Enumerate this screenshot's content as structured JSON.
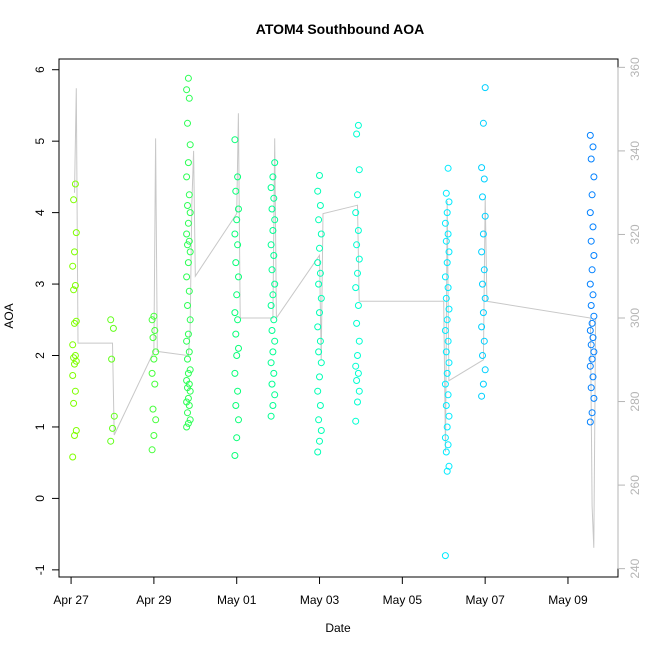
{
  "chart_data": {
    "type": "scatter",
    "title": "ATOM4 Southbound AOA",
    "xlabel": "Date",
    "ylabel": "AOA",
    "x_ticks": [
      "Apr 27",
      "Apr 29",
      "May 01",
      "May 03",
      "May 05",
      "May 07",
      "May 09"
    ],
    "y_ticks": [
      "-1",
      "0",
      "1",
      "2",
      "3",
      "4",
      "5",
      "6"
    ],
    "y2_ticks": [
      "240",
      "260",
      "280",
      "300",
      "320",
      "340",
      "360"
    ],
    "xlim": [
      "2008-04-26 17:00",
      "2008-05-10 05:00"
    ],
    "ylim": [
      -1.1,
      6.15
    ],
    "y2lim": [
      238,
      362
    ],
    "grid": false,
    "colors": {
      "points_start": "#7fff00",
      "points_mid": "#00ff7f",
      "points_late": "#00ffff",
      "points_end": "#0080ff",
      "heading_line": "#c8c8c8",
      "right_axis": "#b5b5b5"
    },
    "point_clusters": [
      {
        "date": "2008-04-27 02:00",
        "aoa": [
          0.58,
          0.88,
          0.95,
          1.33,
          1.5,
          1.72,
          1.88,
          1.92,
          1.97,
          2.0,
          2.15,
          2.45,
          2.48,
          2.92,
          2.98,
          3.25,
          3.45,
          3.72,
          4.18,
          4.4
        ]
      },
      {
        "date": "2008-04-28 00:00",
        "aoa": [
          0.8,
          0.98,
          1.15,
          1.95,
          2.38,
          2.5
        ]
      },
      {
        "date": "2008-04-29 00:00",
        "aoa": [
          0.68,
          0.88,
          1.1,
          1.25,
          1.6,
          1.75,
          1.95,
          2.05,
          2.25,
          2.35,
          2.5,
          2.55
        ]
      },
      {
        "date": "2008-04-29 20:00",
        "aoa": [
          1.0,
          1.05,
          1.1,
          1.2,
          1.3,
          1.35,
          1.4,
          1.5,
          1.55,
          1.6,
          1.65,
          1.75,
          1.8,
          1.95,
          2.05,
          2.2,
          2.3,
          2.5,
          2.7,
          2.9,
          3.1,
          3.3,
          3.45,
          3.55,
          3.6,
          3.7,
          3.85,
          4.0,
          4.1,
          4.25,
          4.5,
          4.7,
          4.95,
          5.25,
          5.6,
          5.72,
          5.88
        ]
      },
      {
        "date": "2008-05-01 00:00",
        "aoa": [
          0.6,
          0.85,
          1.1,
          1.3,
          1.5,
          1.75,
          2.0,
          2.1,
          2.3,
          2.5,
          2.6,
          2.85,
          3.1,
          3.3,
          3.55,
          3.7,
          3.9,
          4.05,
          4.3,
          4.5,
          5.02
        ]
      },
      {
        "date": "2008-05-01 21:00",
        "aoa": [
          1.15,
          1.3,
          1.45,
          1.6,
          1.75,
          1.9,
          2.05,
          2.2,
          2.35,
          2.5,
          2.7,
          2.85,
          3.0,
          3.2,
          3.4,
          3.55,
          3.75,
          3.9,
          4.05,
          4.2,
          4.35,
          4.5,
          4.7
        ]
      },
      {
        "date": "2008-05-03 00:00",
        "aoa": [
          0.65,
          0.8,
          0.95,
          1.1,
          1.3,
          1.5,
          1.7,
          1.9,
          2.05,
          2.2,
          2.4,
          2.6,
          2.8,
          3.0,
          3.15,
          3.3,
          3.5,
          3.7,
          3.9,
          4.1,
          4.3,
          4.52
        ]
      },
      {
        "date": "2008-05-03 22:00",
        "aoa": [
          1.08,
          1.35,
          1.5,
          1.65,
          1.75,
          1.85,
          2.0,
          2.2,
          2.45,
          2.7,
          2.95,
          3.15,
          3.35,
          3.55,
          3.75,
          4.0,
          4.25,
          4.6,
          5.1,
          5.22
        ]
      },
      {
        "date": "2008-05-06 02:00",
        "aoa": [
          -0.8,
          0.38,
          0.45,
          0.65,
          0.75,
          0.85,
          1.0,
          1.15,
          1.3,
          1.45,
          1.6,
          1.75,
          1.9,
          2.05,
          2.2,
          2.35,
          2.5,
          2.65,
          2.8,
          2.95,
          3.1,
          3.3,
          3.45,
          3.6,
          3.7,
          3.85,
          4.0,
          4.15,
          4.27,
          4.62
        ]
      },
      {
        "date": "2008-05-06 23:00",
        "aoa": [
          1.43,
          1.6,
          1.8,
          2.0,
          2.2,
          2.4,
          2.6,
          2.8,
          3.0,
          3.2,
          3.45,
          3.7,
          3.95,
          4.22,
          4.47,
          4.63,
          5.25,
          5.75
        ]
      },
      {
        "date": "2008-05-09 14:00",
        "aoa": [
          1.07,
          1.2,
          1.4,
          1.55,
          1.7,
          1.85,
          1.95,
          2.05,
          2.15,
          2.25,
          2.35,
          2.45,
          2.55,
          2.7,
          2.85,
          3.0,
          3.2,
          3.4,
          3.6,
          3.8,
          4.0,
          4.25,
          4.5,
          4.75,
          4.92,
          5.08
        ]
      }
    ],
    "heading_line": {
      "axis": "right",
      "points": [
        {
          "date": "2008-04-27 02:00",
          "v": 330
        },
        {
          "date": "2008-04-27 03:00",
          "v": 355
        },
        {
          "date": "2008-04-27 04:00",
          "v": 294
        },
        {
          "date": "2008-04-28 00:00",
          "v": 294
        },
        {
          "date": "2008-04-28 01:00",
          "v": 272
        },
        {
          "date": "2008-04-29 00:00",
          "v": 292
        },
        {
          "date": "2008-04-29 01:00",
          "v": 343
        },
        {
          "date": "2008-04-29 02:00",
          "v": 292
        },
        {
          "date": "2008-04-29 20:00",
          "v": 291
        },
        {
          "date": "2008-04-29 21:00",
          "v": 297
        },
        {
          "date": "2008-04-29 22:00",
          "v": 327
        },
        {
          "date": "2008-04-29 23:00",
          "v": 340
        },
        {
          "date": "2008-04-30 00:00",
          "v": 310
        },
        {
          "date": "2008-05-01 00:00",
          "v": 325
        },
        {
          "date": "2008-05-01 01:00",
          "v": 349
        },
        {
          "date": "2008-05-01 02:00",
          "v": 300
        },
        {
          "date": "2008-05-01 21:00",
          "v": 300
        },
        {
          "date": "2008-05-01 22:00",
          "v": 343
        },
        {
          "date": "2008-05-01 23:00",
          "v": 300
        },
        {
          "date": "2008-05-03 00:00",
          "v": 315
        },
        {
          "date": "2008-05-03 01:00",
          "v": 290
        },
        {
          "date": "2008-05-03 02:00",
          "v": 325
        },
        {
          "date": "2008-05-03 22:00",
          "v": 327
        },
        {
          "date": "2008-05-03 23:00",
          "v": 304
        },
        {
          "date": "2008-05-06 00:00",
          "v": 304
        },
        {
          "date": "2008-05-06 01:00",
          "v": 268
        },
        {
          "date": "2008-05-06 02:00",
          "v": 328
        },
        {
          "date": "2008-05-06 03:00",
          "v": 285
        },
        {
          "date": "2008-05-06 23:00",
          "v": 290
        },
        {
          "date": "2008-05-07 00:00",
          "v": 329
        },
        {
          "date": "2008-05-07 01:00",
          "v": 304
        },
        {
          "date": "2008-05-09 13:00",
          "v": 300
        },
        {
          "date": "2008-05-09 14:00",
          "v": 255
        },
        {
          "date": "2008-05-09 15:00",
          "v": 245
        },
        {
          "date": "2008-05-09 16:00",
          "v": 300
        }
      ]
    }
  }
}
